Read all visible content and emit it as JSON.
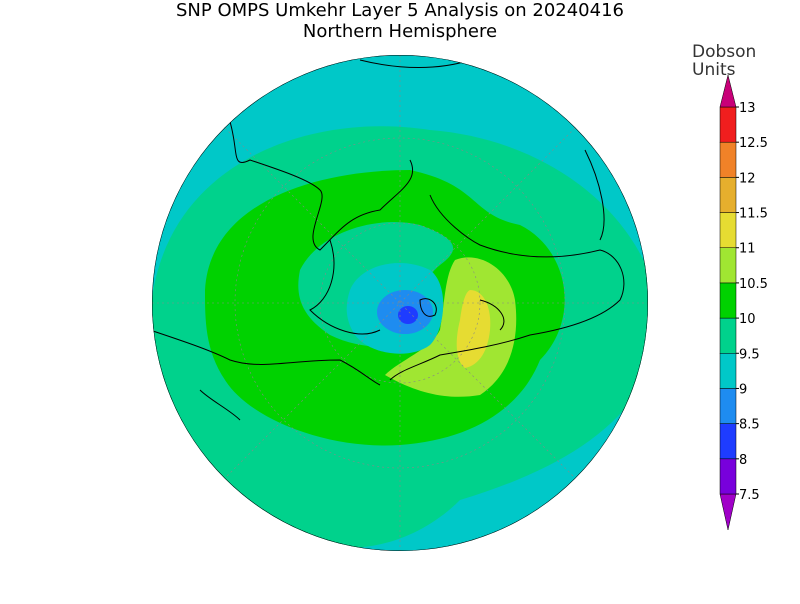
{
  "title": "SNP OMPS Umkehr Layer 5 Analysis on 20240416",
  "subtitle": "Northern Hemisphere",
  "colorbar": {
    "title": [
      "Dobson",
      "Units"
    ],
    "ticks": [
      7.5,
      8,
      8.5,
      9,
      9.5,
      10,
      10.5,
      11,
      11.5,
      12,
      12.5,
      13
    ],
    "colors": [
      "#a000c8",
      "#7800dc",
      "#1e3cff",
      "#1e8cf0",
      "#00c8c8",
      "#00d28c",
      "#00d200",
      "#a0e632",
      "#e6dc32",
      "#e6af2d",
      "#f08228",
      "#f01e1e",
      "#c80078"
    ]
  }
}
